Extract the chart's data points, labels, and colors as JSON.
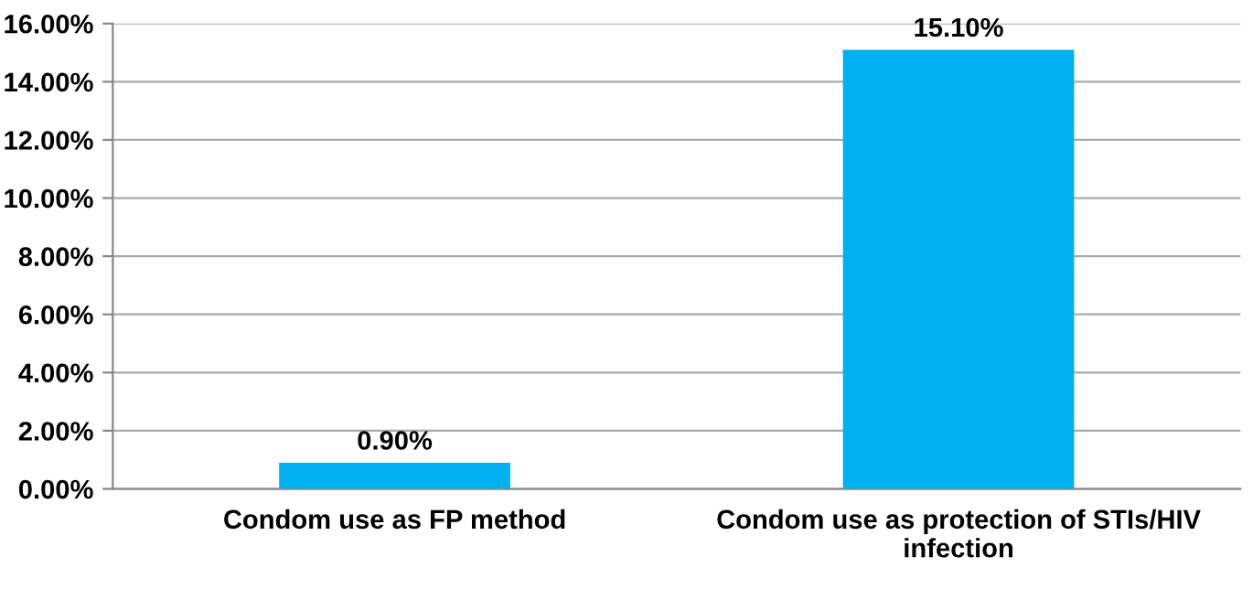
{
  "chart_data": {
    "type": "bar",
    "categories": [
      "Condom use as FP method",
      "Condom use as protection of STIs/HIV\ninfection"
    ],
    "values": [
      0.9,
      15.1
    ],
    "value_labels": [
      "0.90%",
      "15.10%"
    ],
    "color": "#00b0f0",
    "ylim": [
      0,
      16
    ],
    "yticks": [
      {
        "value": 0,
        "label": "0.00%"
      },
      {
        "value": 2,
        "label": "2.00%"
      },
      {
        "value": 4,
        "label": "4.00%"
      },
      {
        "value": 6,
        "label": "6.00%"
      },
      {
        "value": 8,
        "label": "8.00%"
      },
      {
        "value": 10,
        "label": "10.00%"
      },
      {
        "value": 12,
        "label": "12.00%"
      },
      {
        "value": 14,
        "label": "14.00%"
      },
      {
        "value": 16,
        "label": "16.00%"
      }
    ],
    "grid": "y",
    "legend": false
  }
}
